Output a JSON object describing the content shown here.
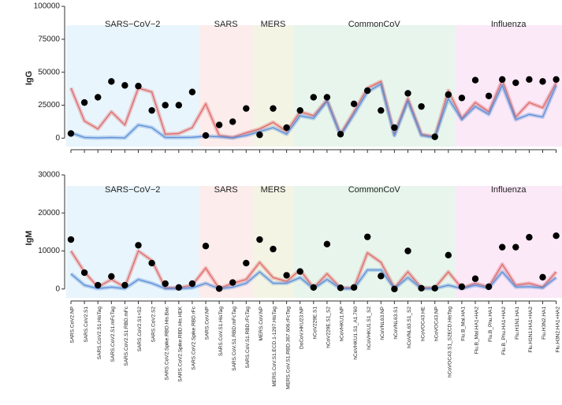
{
  "chart_data": [
    {
      "type": "line",
      "ylabel": "IgG",
      "ylim": [
        -4000,
        100000
      ],
      "yticks": [
        0,
        25000,
        50000,
        75000,
        100000
      ],
      "groups": [
        {
          "name": "SARS−CoV−2",
          "size": 10,
          "color": "#e8f5fc"
        },
        {
          "name": "SARS",
          "size": 4,
          "color": "#fcecec"
        },
        {
          "name": "MERS",
          "size": 3,
          "color": "#f3f4e4"
        },
        {
          "name": "CommonCoV",
          "size": 12,
          "color": "#e7f5ec"
        },
        {
          "name": "Influenza",
          "size": 8,
          "color": "#fbe9f8"
        }
      ],
      "series": [
        {
          "kind": "line",
          "color": "#e06a6a",
          "values": [
            38000,
            13000,
            7000,
            20000,
            10000,
            38000,
            35000,
            3000,
            3500,
            8000,
            26000,
            2000,
            500,
            4000,
            7000,
            12000,
            5000,
            20000,
            17000,
            29000,
            3000,
            20000,
            38000,
            43000,
            3000,
            30000,
            3000,
            1000,
            36000,
            15000,
            27000,
            20000,
            44000,
            16000,
            27000,
            23000,
            42000
          ]
        },
        {
          "kind": "line",
          "color": "#5b8fd8",
          "values": [
            4000,
            500,
            200,
            500,
            200,
            10000,
            8000,
            500,
            500,
            600,
            1500,
            1000,
            200,
            2000,
            5000,
            8000,
            3000,
            17000,
            15000,
            28000,
            2000,
            18000,
            35000,
            41000,
            2000,
            28000,
            2000,
            500,
            30000,
            14000,
            24000,
            18000,
            40000,
            14000,
            18000,
            16000,
            40000
          ]
        },
        {
          "kind": "points",
          "color": "#000000",
          "values": [
            3500,
            27000,
            31000,
            43000,
            40000,
            39500,
            21000,
            25000,
            25000,
            35000,
            2000,
            10000,
            12500,
            22500,
            2500,
            22500,
            8000,
            21000,
            31000,
            31000,
            3000,
            26000,
            36000,
            21000,
            8000,
            34000,
            24000,
            1000,
            33000,
            30500,
            44000,
            32000,
            44500,
            42000,
            44500,
            43000,
            44500
          ]
        }
      ]
    },
    {
      "type": "line",
      "ylabel": "IgM",
      "ylim": [
        -1500,
        30000
      ],
      "yticks": [
        0,
        10000,
        20000,
        30000
      ],
      "groups": [
        {
          "name": "SARS−CoV−2",
          "size": 10,
          "color": "#e8f5fc"
        },
        {
          "name": "SARS",
          "size": 4,
          "color": "#fcecec"
        },
        {
          "name": "MERS",
          "size": 3,
          "color": "#f3f4e4"
        },
        {
          "name": "CommonCoV",
          "size": 12,
          "color": "#e7f5ec"
        },
        {
          "name": "Influenza",
          "size": 8,
          "color": "#fbe9f8"
        }
      ],
      "categories": [
        "SARS.CoV2.NP",
        "SARS.CoV2.S1",
        "SARS.CoV2.S1.HisTag",
        "SARS.CoV2.S1.mFcTag",
        "SARS.CoV2.S1.RBD.mFc",
        "SARS.CoV2.S1+S2",
        "SARS.CoV2.S2",
        "SARS.CoV2.Spike.RBD.His.Bac",
        "SARS.CoV2.Spike.RBD.His.HEK",
        "SARS.CoV2.Spike.RBD.rFc",
        "SARS.CoV.NP",
        "SARS.CoV.S1.HisTag",
        "SARS.CoV.S1.RBD.mFcTag",
        "SARS.CoV.S1.RBD.rFcTag",
        "MERS.CoV.NP",
        "MERS.CoV.S1.ECD.1-1297.HisTag",
        "MERS.CoV.S1.RBD.367.606.rFcTag",
        "DoCoV.HKU23.NP",
        "hCoV229E.S1",
        "hCoV229E.S1_S2",
        "hCoVHKU1.NP",
        "hCoVHKU1.S1_A1.760",
        "hCoVHKU1.S1_S2",
        "hCoVNL63.NP",
        "hCoVNL63.S1",
        "hCoVNL63.S1_S2",
        "hCoVOC43.HE",
        "hCoVOC43.NP",
        "hCoVOC43.S1_S2ECD.HisTag",
        "Flu.B_Mal.HA1",
        "Flu.B_Mal.HA1+HA2",
        "Flu.B_Phu.HA1",
        "Flu.B_Phu.HA1+HA2",
        "Flu.H1N1.HA1",
        "Flu.H1N1.HA1+HA2",
        "Flu.H3N2.HA1",
        "Flu.H3N2.HA1+HA2"
      ],
      "series": [
        {
          "kind": "line",
          "color": "#e06a6a",
          "values": [
            10000,
            4500,
            500,
            2500,
            500,
            10000,
            7500,
            300,
            300,
            1000,
            5500,
            100,
            1500,
            2500,
            7000,
            3000,
            2000,
            5000,
            300,
            4000,
            300,
            300,
            9500,
            7000,
            300,
            4500,
            300,
            300,
            4500,
            200,
            1500,
            500,
            6500,
            1000,
            1500,
            500,
            4500
          ]
        },
        {
          "kind": "line",
          "color": "#5b8fd8",
          "values": [
            4000,
            1000,
            100,
            500,
            100,
            2500,
            1500,
            100,
            100,
            300,
            1500,
            50,
            500,
            1500,
            4500,
            1500,
            1500,
            3000,
            100,
            2500,
            100,
            100,
            5000,
            5000,
            100,
            3000,
            100,
            100,
            1000,
            100,
            1000,
            200,
            4500,
            500,
            600,
            300,
            3000
          ]
        },
        {
          "kind": "points",
          "color": "#000000",
          "values": [
            13000,
            4300,
            1000,
            3300,
            1000,
            11500,
            6800,
            1400,
            400,
            1400,
            11300,
            100,
            1700,
            6800,
            13000,
            10500,
            3600,
            4600,
            400,
            11800,
            300,
            400,
            13700,
            3400,
            0,
            10000,
            200,
            200,
            8900,
            600,
            2700,
            600,
            11000,
            11000,
            13600,
            3100,
            14000
          ]
        }
      ]
    }
  ]
}
